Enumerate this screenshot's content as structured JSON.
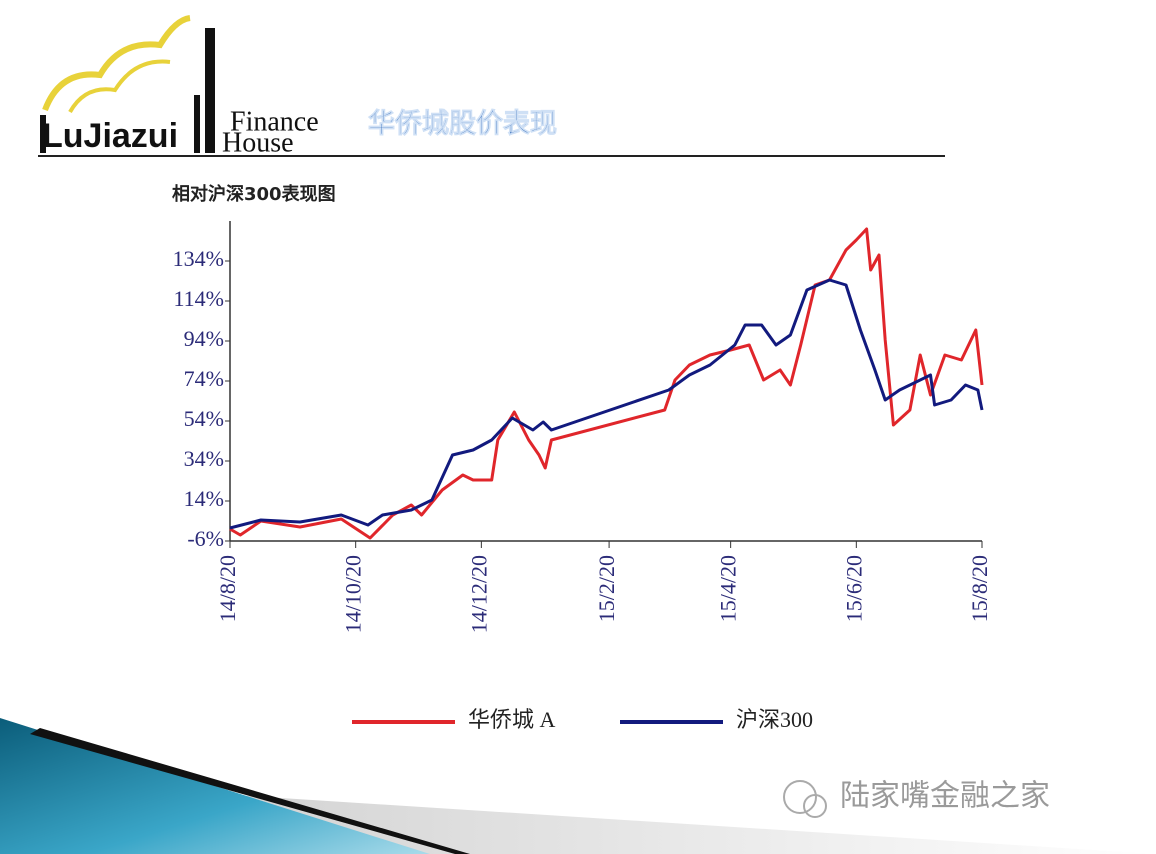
{
  "header": {
    "logo": "LuJiazui",
    "logo_finance": "Finance",
    "logo_house": "House",
    "title": "华侨城股价表现"
  },
  "watermark": "陆家嘴金融之家",
  "chart_data": {
    "type": "line",
    "title": "相对沪深300表现图",
    "xlim": [
      "14/8/20",
      "15/8/20"
    ],
    "xticks": [
      "14/8/20",
      "14/10/20",
      "14/12/20",
      "15/2/20",
      "15/4/20",
      "15/6/20",
      "15/8/20"
    ],
    "ylim": [
      -6,
      154
    ],
    "yticks": [
      {
        "value": -6,
        "label": "-6%"
      },
      {
        "value": 14,
        "label": "14%"
      },
      {
        "value": 34,
        "label": "34%"
      },
      {
        "value": 54,
        "label": "54%"
      },
      {
        "value": 74,
        "label": "74%"
      },
      {
        "value": 94,
        "label": "94%"
      },
      {
        "value": 114,
        "label": "114%"
      },
      {
        "value": 134,
        "label": "134%"
      }
    ],
    "legend": "bottom",
    "series": [
      {
        "name": "华侨城 A",
        "color": "#e0262b",
        "x": [
          "14/8/20",
          "14/8/25",
          "14/9/4",
          "14/9/23",
          "14/10/13",
          "14/10/27",
          "14/11/7",
          "14/11/16",
          "14/11/21",
          "14/12/1",
          "14/12/11",
          "14/12/16",
          "14/12/25",
          "14/12/28",
          "15/1/5",
          "15/1/12",
          "15/1/17",
          "15/1/20",
          "15/1/23",
          "15/3/19",
          "15/3/24",
          "15/3/31",
          "15/4/10",
          "15/4/20",
          "15/4/29",
          "15/5/6",
          "15/5/14",
          "15/5/19",
          "15/5/24",
          "15/5/31",
          "15/6/7",
          "15/6/15",
          "15/6/20",
          "15/6/25",
          "15/6/27",
          "15/7/1",
          "15/7/4",
          "15/7/8",
          "15/7/16",
          "15/7/21",
          "15/7/26",
          "15/8/2",
          "15/8/10",
          "15/8/17",
          "15/8/20"
        ],
        "values": [
          0,
          -3,
          4,
          1,
          5,
          -4.5,
          7,
          12,
          7,
          19.5,
          27,
          24.5,
          24.5,
          44.5,
          58.5,
          44.5,
          37,
          30.5,
          44.5,
          59.5,
          74.5,
          82,
          87,
          89.5,
          92,
          74.5,
          79.5,
          72,
          92,
          122,
          124.5,
          139.5,
          144.5,
          150,
          129.5,
          137,
          94.5,
          52,
          59.5,
          87,
          67,
          87,
          84.5,
          99.5,
          72
        ]
      },
      {
        "name": "沪深300",
        "color": "#121a7e",
        "x": [
          "14/8/20",
          "14/9/4",
          "14/9/23",
          "14/10/13",
          "14/10/26",
          "14/11/2",
          "14/11/16",
          "14/11/26",
          "14/12/6",
          "14/12/16",
          "14/12/25",
          "15/1/4",
          "15/1/14",
          "15/1/19",
          "15/1/23",
          "15/3/21",
          "15/3/31",
          "15/4/10",
          "15/4/22",
          "15/4/27",
          "15/5/5",
          "15/5/12",
          "15/5/19",
          "15/5/27",
          "15/6/7",
          "15/6/15",
          "15/6/22",
          "15/6/29",
          "15/7/4",
          "15/7/11",
          "15/7/26",
          "15/7/28",
          "15/8/5",
          "15/8/12",
          "15/8/18",
          "15/8/20"
        ],
        "values": [
          0.5,
          4.5,
          3.5,
          7,
          2,
          7,
          9.5,
          14.5,
          37,
          39.5,
          44.5,
          55.5,
          49.5,
          53.5,
          49.5,
          69.5,
          77,
          82,
          92,
          102,
          102,
          92,
          97,
          119.5,
          124.5,
          122,
          99.5,
          79.5,
          64.5,
          69.5,
          77,
          62,
          64.5,
          72,
          69.5,
          59.5
        ]
      }
    ]
  }
}
